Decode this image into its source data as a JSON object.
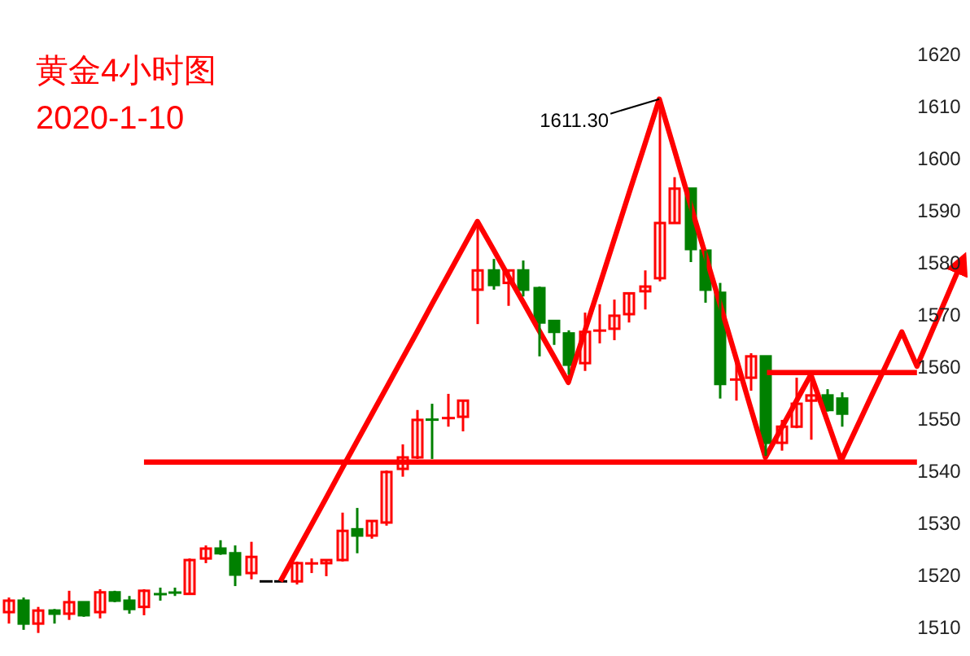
{
  "chart_data": {
    "type": "candlestick",
    "title": "黄金4小时图",
    "subtitle": "2020-1-10",
    "categories": [
      null,
      null,
      null,
      null,
      null,
      null,
      null,
      null,
      null,
      null,
      null,
      null,
      null,
      null,
      null,
      null,
      null,
      null,
      null,
      null,
      null,
      null,
      null,
      null,
      null,
      null,
      null,
      null,
      null,
      null,
      null,
      null,
      null,
      null,
      null,
      null,
      null,
      null,
      null,
      null,
      null,
      null,
      null,
      null,
      null,
      null,
      null,
      null,
      null,
      null,
      null,
      null,
      null,
      null,
      null,
      null,
      null,
      null,
      null,
      null,
      null,
      null,
      null,
      null
    ],
    "ohlc": [
      [
        1512.8,
        1515.6,
        1510.6,
        1515.0
      ],
      [
        1515.0,
        1515.6,
        1509.4,
        1510.6
      ],
      [
        1510.6,
        1513.8,
        1508.8,
        1513.1
      ],
      [
        1513.1,
        1513.4,
        1510.6,
        1512.5
      ],
      [
        1512.5,
        1516.9,
        1511.3,
        1514.7
      ],
      [
        1514.7,
        1514.7,
        1511.9,
        1512.2
      ],
      [
        1512.8,
        1517.2,
        1511.6,
        1516.6
      ],
      [
        1516.6,
        1516.9,
        1514.7,
        1515.0
      ],
      [
        1515.0,
        1515.9,
        1512.5,
        1513.4
      ],
      [
        1513.8,
        1517.2,
        1512.2,
        1516.9
      ],
      [
        1516.3,
        1517.5,
        1515.0,
        1516.2
      ],
      [
        1516.6,
        1517.5,
        1515.9,
        1516.5
      ],
      [
        1516.3,
        1523.1,
        1516.3,
        1522.8
      ],
      [
        1523.1,
        1525.6,
        1522.2,
        1525.0
      ],
      [
        1525.0,
        1526.6,
        1523.8,
        1524.1
      ],
      [
        1524.1,
        1525.6,
        1517.8,
        1520.0
      ],
      [
        1520.3,
        1526.3,
        1519.1,
        1523.4
      ],
      [
        1518.7,
        1518.7,
        1518.7,
        1518.7
      ],
      [
        1518.7,
        1518.7,
        1518.7,
        1518.7
      ],
      [
        1518.7,
        1522.5,
        1518.1,
        1522.2
      ],
      [
        1522.1,
        1523.1,
        1520.3,
        1522.2
      ],
      [
        1522.2,
        1522.8,
        1519.7,
        1522.8
      ],
      [
        1522.8,
        1531.9,
        1522.5,
        1528.4
      ],
      [
        1528.7,
        1532.8,
        1524.1,
        1527.5
      ],
      [
        1527.5,
        1530.3,
        1526.9,
        1530.3
      ],
      [
        1530.0,
        1540.0,
        1529.4,
        1539.7
      ],
      [
        1540.3,
        1545.0,
        1538.8,
        1542.5
      ],
      [
        1542.5,
        1551.6,
        1542.2,
        1549.7
      ],
      [
        1549.8,
        1552.8,
        1542.2,
        1549.7
      ],
      [
        1550.0,
        1554.7,
        1548.4,
        1550.1
      ],
      [
        1550.3,
        1553.4,
        1547.5,
        1553.4
      ],
      [
        1574.7,
        1587.5,
        1568.1,
        1578.4
      ],
      [
        1578.4,
        1580.6,
        1574.7,
        1575.6
      ],
      [
        1576.0,
        1578.4,
        1571.6,
        1578.4
      ],
      [
        1578.4,
        1580.3,
        1573.4,
        1574.7
      ],
      [
        1575.0,
        1575.3,
        1561.9,
        1568.4
      ],
      [
        1568.7,
        1568.7,
        1564.1,
        1566.6
      ],
      [
        1566.3,
        1566.9,
        1558.4,
        1560.3
      ],
      [
        1560.6,
        1570.3,
        1559.1,
        1566.6
      ],
      [
        1566.8,
        1571.9,
        1564.4,
        1566.9
      ],
      [
        1567.2,
        1572.8,
        1565.0,
        1569.7
      ],
      [
        1570.0,
        1574.0,
        1568.4,
        1574.0
      ],
      [
        1574.4,
        1578.4,
        1570.9,
        1575.3
      ],
      [
        1576.9,
        1611.3,
        1576.3,
        1587.5
      ],
      [
        1587.5,
        1596.3,
        1587.5,
        1594.1
      ],
      [
        1594.1,
        1594.1,
        1580.0,
        1582.5
      ],
      [
        1582.2,
        1582.2,
        1572.2,
        1574.7
      ],
      [
        1574.1,
        1576.0,
        1553.8,
        1556.6
      ],
      [
        1557.4,
        1561.0,
        1553.4,
        1557.5
      ],
      [
        1557.8,
        1562.5,
        1555.3,
        1561.9
      ],
      [
        1561.9,
        1561.9,
        1542.8,
        1545.3
      ],
      [
        1545.3,
        1549.7,
        1543.8,
        1548.4
      ],
      [
        1548.4,
        1557.8,
        1548.1,
        1552.8
      ],
      [
        1553.4,
        1557.5,
        1545.9,
        1554.4
      ],
      [
        1554.4,
        1555.6,
        1551.3,
        1551.6
      ],
      [
        1553.8,
        1555.0,
        1548.4,
        1550.9
      ],
      null,
      null,
      null,
      null,
      null,
      null,
      null,
      null
    ],
    "series": [
      {
        "type": "line",
        "color": "#ff0000",
        "values": [
          null,
          null,
          null,
          null,
          null,
          null,
          null,
          null,
          null,
          null,
          null,
          null,
          null,
          null,
          null,
          null,
          null,
          null,
          1518.7,
          1524.0,
          1529.3,
          1534.6,
          1540.0,
          1545.3,
          1550.6,
          1555.9,
          1561.2,
          1566.5,
          1571.9,
          1577.2,
          1582.5,
          1587.8,
          1582.7,
          1577.5,
          1572.4,
          1567.2,
          1562.1,
          1556.9,
          1566.0,
          1575.0,
          1584.1,
          1593.2,
          1602.2,
          1611.3,
          1601.5,
          1591.6,
          1581.8,
          1572.0,
          1562.2,
          1552.3,
          1542.5,
          1547.8,
          1553.1,
          1558.4,
          1550.2,
          1541.9,
          1548.1,
          1554.3,
          1560.4,
          1566.6,
          1560.0,
          1566.8,
          1573.5,
          1580.3
        ]
      },
      {
        "type": "line",
        "color": "#ff0000",
        "values": [
          null,
          null,
          null,
          null,
          null,
          null,
          null,
          null,
          null,
          1541.6,
          1541.6,
          1541.6,
          1541.6,
          1541.6,
          1541.6,
          1541.6,
          1541.6,
          1541.6,
          1541.6,
          1541.6,
          1541.6,
          1541.6,
          1541.6,
          1541.6,
          1541.6,
          1541.6,
          1541.6,
          1541.6,
          1541.6,
          1541.6,
          1541.6,
          1541.6,
          1541.6,
          1541.6,
          1541.6,
          1541.6,
          1541.6,
          1541.6,
          1541.6,
          1541.6,
          1541.6,
          1541.6,
          1541.6,
          1541.6,
          1541.6,
          1541.6,
          1541.6,
          1541.6,
          1541.6,
          1541.6,
          1541.6,
          1541.6,
          1541.6,
          1541.6,
          1541.6,
          1541.6,
          1541.6,
          1541.6,
          1541.6,
          1541.6,
          1541.6,
          null,
          null,
          null
        ]
      },
      {
        "type": "line",
        "color": "#ff0000",
        "values": [
          null,
          null,
          null,
          null,
          null,
          null,
          null,
          null,
          null,
          null,
          null,
          null,
          null,
          null,
          null,
          null,
          null,
          null,
          null,
          null,
          null,
          null,
          null,
          null,
          null,
          null,
          null,
          null,
          null,
          null,
          null,
          null,
          null,
          null,
          null,
          null,
          null,
          null,
          null,
          null,
          null,
          null,
          null,
          null,
          null,
          null,
          null,
          null,
          null,
          null,
          1558.8,
          1558.8,
          1558.8,
          1558.8,
          1558.8,
          1558.8,
          1558.8,
          1558.8,
          1558.8,
          1558.8,
          1558.8,
          null,
          null,
          null
        ]
      }
    ],
    "annotations": [
      "1611.30"
    ],
    "ylim": [
      1510,
      1620
    ],
    "yticks": [
      1510,
      1520,
      1530,
      1540,
      1550,
      1560,
      1570,
      1580,
      1590,
      1600,
      1610,
      1620
    ],
    "tick_labels": "y",
    "grid": false
  }
}
